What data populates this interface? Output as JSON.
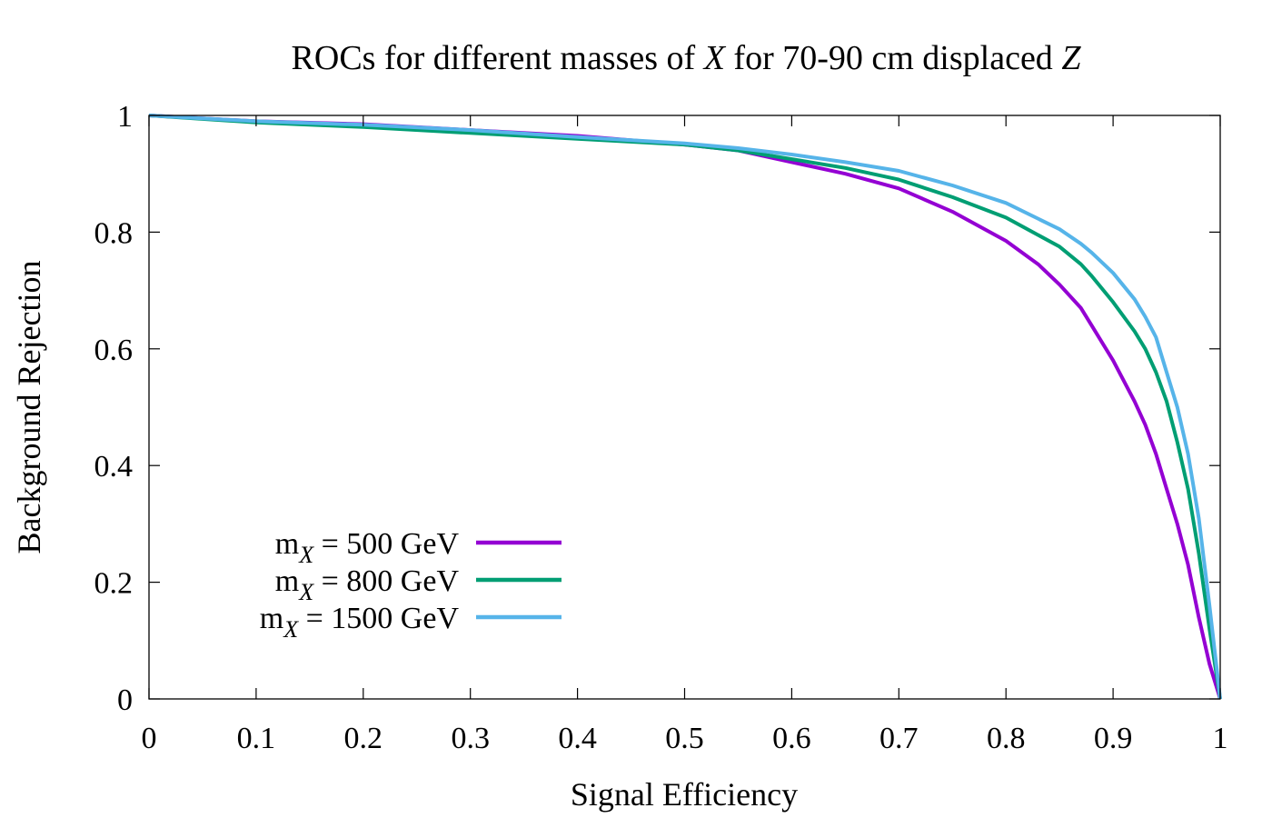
{
  "chart_data": {
    "type": "line",
    "title_parts": [
      {
        "text": "ROCs for different masses of ",
        "italic": false
      },
      {
        "text": "X",
        "italic": true
      },
      {
        "text": " for 70-90 cm displaced ",
        "italic": false
      },
      {
        "text": "Z",
        "italic": true
      }
    ],
    "xlabel": "Signal Efficiency",
    "ylabel": "Background Rejection",
    "xlim": [
      0,
      1
    ],
    "ylim": [
      0,
      1
    ],
    "xticks": [
      0,
      0.1,
      0.2,
      0.3,
      0.4,
      0.5,
      0.6,
      0.7,
      0.8,
      0.9,
      1
    ],
    "xtick_labels": [
      "0",
      "0.1",
      "0.2",
      "0.3",
      "0.4",
      "0.5",
      "0.6",
      "0.7",
      "0.8",
      "0.9",
      "1"
    ],
    "yticks": [
      0,
      0.2,
      0.4,
      0.6,
      0.8,
      1
    ],
    "ytick_labels": [
      "0",
      "0.2",
      "0.4",
      "0.6",
      "0.8",
      "1"
    ],
    "grid": false,
    "legend_position": "bottom-left",
    "series": [
      {
        "name": "m_X = 500 GeV",
        "legend_main": "m",
        "legend_sub": "X",
        "legend_rest": " = 500 GeV",
        "color": "#9400d3",
        "x": [
          0,
          0.05,
          0.1,
          0.2,
          0.3,
          0.4,
          0.5,
          0.55,
          0.6,
          0.65,
          0.7,
          0.75,
          0.8,
          0.83,
          0.85,
          0.87,
          0.88,
          0.9,
          0.92,
          0.93,
          0.94,
          0.95,
          0.96,
          0.97,
          0.98,
          0.99,
          1.0
        ],
        "y": [
          1.0,
          0.995,
          0.99,
          0.985,
          0.975,
          0.965,
          0.95,
          0.94,
          0.92,
          0.9,
          0.875,
          0.835,
          0.785,
          0.745,
          0.71,
          0.67,
          0.64,
          0.58,
          0.51,
          0.47,
          0.42,
          0.36,
          0.3,
          0.23,
          0.14,
          0.06,
          0.0
        ]
      },
      {
        "name": "m_X = 800 GeV",
        "legend_main": "m",
        "legend_sub": "X",
        "legend_rest": " = 800 GeV",
        "color": "#009e73",
        "x": [
          0,
          0.05,
          0.1,
          0.2,
          0.3,
          0.4,
          0.5,
          0.55,
          0.6,
          0.65,
          0.7,
          0.75,
          0.8,
          0.85,
          0.87,
          0.88,
          0.9,
          0.92,
          0.93,
          0.94,
          0.95,
          0.96,
          0.97,
          0.98,
          0.99,
          1.0
        ],
        "y": [
          1.0,
          0.994,
          0.988,
          0.98,
          0.97,
          0.96,
          0.95,
          0.94,
          0.925,
          0.91,
          0.89,
          0.86,
          0.825,
          0.775,
          0.745,
          0.725,
          0.68,
          0.63,
          0.6,
          0.56,
          0.51,
          0.44,
          0.36,
          0.25,
          0.12,
          0.0
        ]
      },
      {
        "name": "m_X = 1500 GeV",
        "legend_main": "m",
        "legend_sub": "X",
        "legend_rest": " = 1500 GeV",
        "color": "#56b4e9",
        "x": [
          0,
          0.05,
          0.1,
          0.2,
          0.3,
          0.4,
          0.5,
          0.55,
          0.6,
          0.65,
          0.7,
          0.75,
          0.8,
          0.85,
          0.87,
          0.88,
          0.9,
          0.92,
          0.93,
          0.94,
          0.95,
          0.96,
          0.97,
          0.98,
          0.99,
          1.0
        ],
        "y": [
          1.0,
          0.995,
          0.99,
          0.984,
          0.975,
          0.963,
          0.952,
          0.944,
          0.933,
          0.92,
          0.905,
          0.88,
          0.85,
          0.805,
          0.78,
          0.765,
          0.73,
          0.685,
          0.655,
          0.62,
          0.56,
          0.5,
          0.42,
          0.31,
          0.16,
          0.0
        ]
      }
    ]
  }
}
